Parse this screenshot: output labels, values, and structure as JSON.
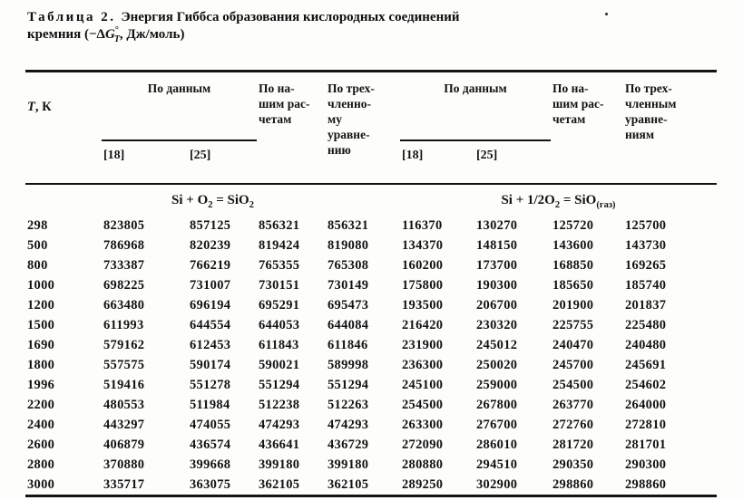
{
  "page": {
    "background": "#fdfdfb",
    "ink": "#131313"
  },
  "caption": {
    "label": "Таблица 2.",
    "line1": "Энергия Гиббса образования кислородных соединений",
    "line2": {
      "prefix": "кремния (−Δ",
      "symbol": "G",
      "sup": "°",
      "sub": "T",
      "suffix": ", Дж/моль)"
    }
  },
  "table": {
    "header": {
      "col_temperature": {
        "italic": "T",
        "rest": ", К"
      },
      "group_by_data_left": "По данным",
      "ref_18_left": "[18]",
      "ref_25_left": "[25]",
      "col_our_calc_left": "По на-\nшим рас-\nчетам",
      "col_three_term_left": "По трех-\nчленно-\nму\nуравне-\nнию",
      "group_by_data_right": "По данным",
      "ref_18_right": "[18]",
      "ref_25_right": "[25]",
      "col_our_calc_right": "По на-\nшим рас-\nчетам",
      "col_three_term_right": "По трех-\nчленным\nуравне-\nниям"
    },
    "sections": {
      "left_reaction": {
        "p1": "Si + O",
        "s1": "2",
        "p2": " = SiO",
        "s2": "2"
      },
      "right_reaction": {
        "p1": "Si + 1/2O",
        "s1": "2",
        "p2": " = SiO",
        "s2": "(газ)"
      }
    },
    "rows": [
      [
        "298",
        "823805",
        "857125",
        "856321",
        "856321",
        "116370",
        "130270",
        "125720",
        "125700"
      ],
      [
        "500",
        "786968",
        "820239",
        "819424",
        "819080",
        "134370",
        "148150",
        "143600",
        "143730"
      ],
      [
        "800",
        "733387",
        "766219",
        "765355",
        "765308",
        "160200",
        "173700",
        "168850",
        "169265"
      ],
      [
        "1000",
        "698225",
        "731007",
        "730151",
        "730149",
        "175800",
        "190300",
        "185650",
        "185740"
      ],
      [
        "1200",
        "663480",
        "696194",
        "695291",
        "695473",
        "193500",
        "206700",
        "201900",
        "201837"
      ],
      [
        "1500",
        "611993",
        "644554",
        "644053",
        "644084",
        "216420",
        "230320",
        "225755",
        "225480"
      ],
      [
        "1690",
        "579162",
        "612453",
        "611843",
        "611846",
        "231900",
        "245012",
        "240470",
        "240480"
      ],
      [
        "1800",
        "557575",
        "590174",
        "590021",
        "589998",
        "236300",
        "250020",
        "245700",
        "245691"
      ],
      [
        "1996",
        "519416",
        "551278",
        "551294",
        "551294",
        "245100",
        "259000",
        "254500",
        "254602"
      ],
      [
        "2200",
        "480553",
        "511984",
        "512238",
        "512263",
        "254500",
        "267800",
        "263770",
        "264000"
      ],
      [
        "2400",
        "443297",
        "474055",
        "474293",
        "474293",
        "263300",
        "276700",
        "272760",
        "272810"
      ],
      [
        "2600",
        "406879",
        "436574",
        "436641",
        "436729",
        "272090",
        "286010",
        "281720",
        "281701"
      ],
      [
        "2800",
        "370880",
        "399668",
        "399180",
        "399180",
        "280880",
        "294510",
        "290350",
        "290300"
      ],
      [
        "3000",
        "335717",
        "363075",
        "362105",
        "362105",
        "289250",
        "302900",
        "298860",
        "298860"
      ]
    ]
  }
}
